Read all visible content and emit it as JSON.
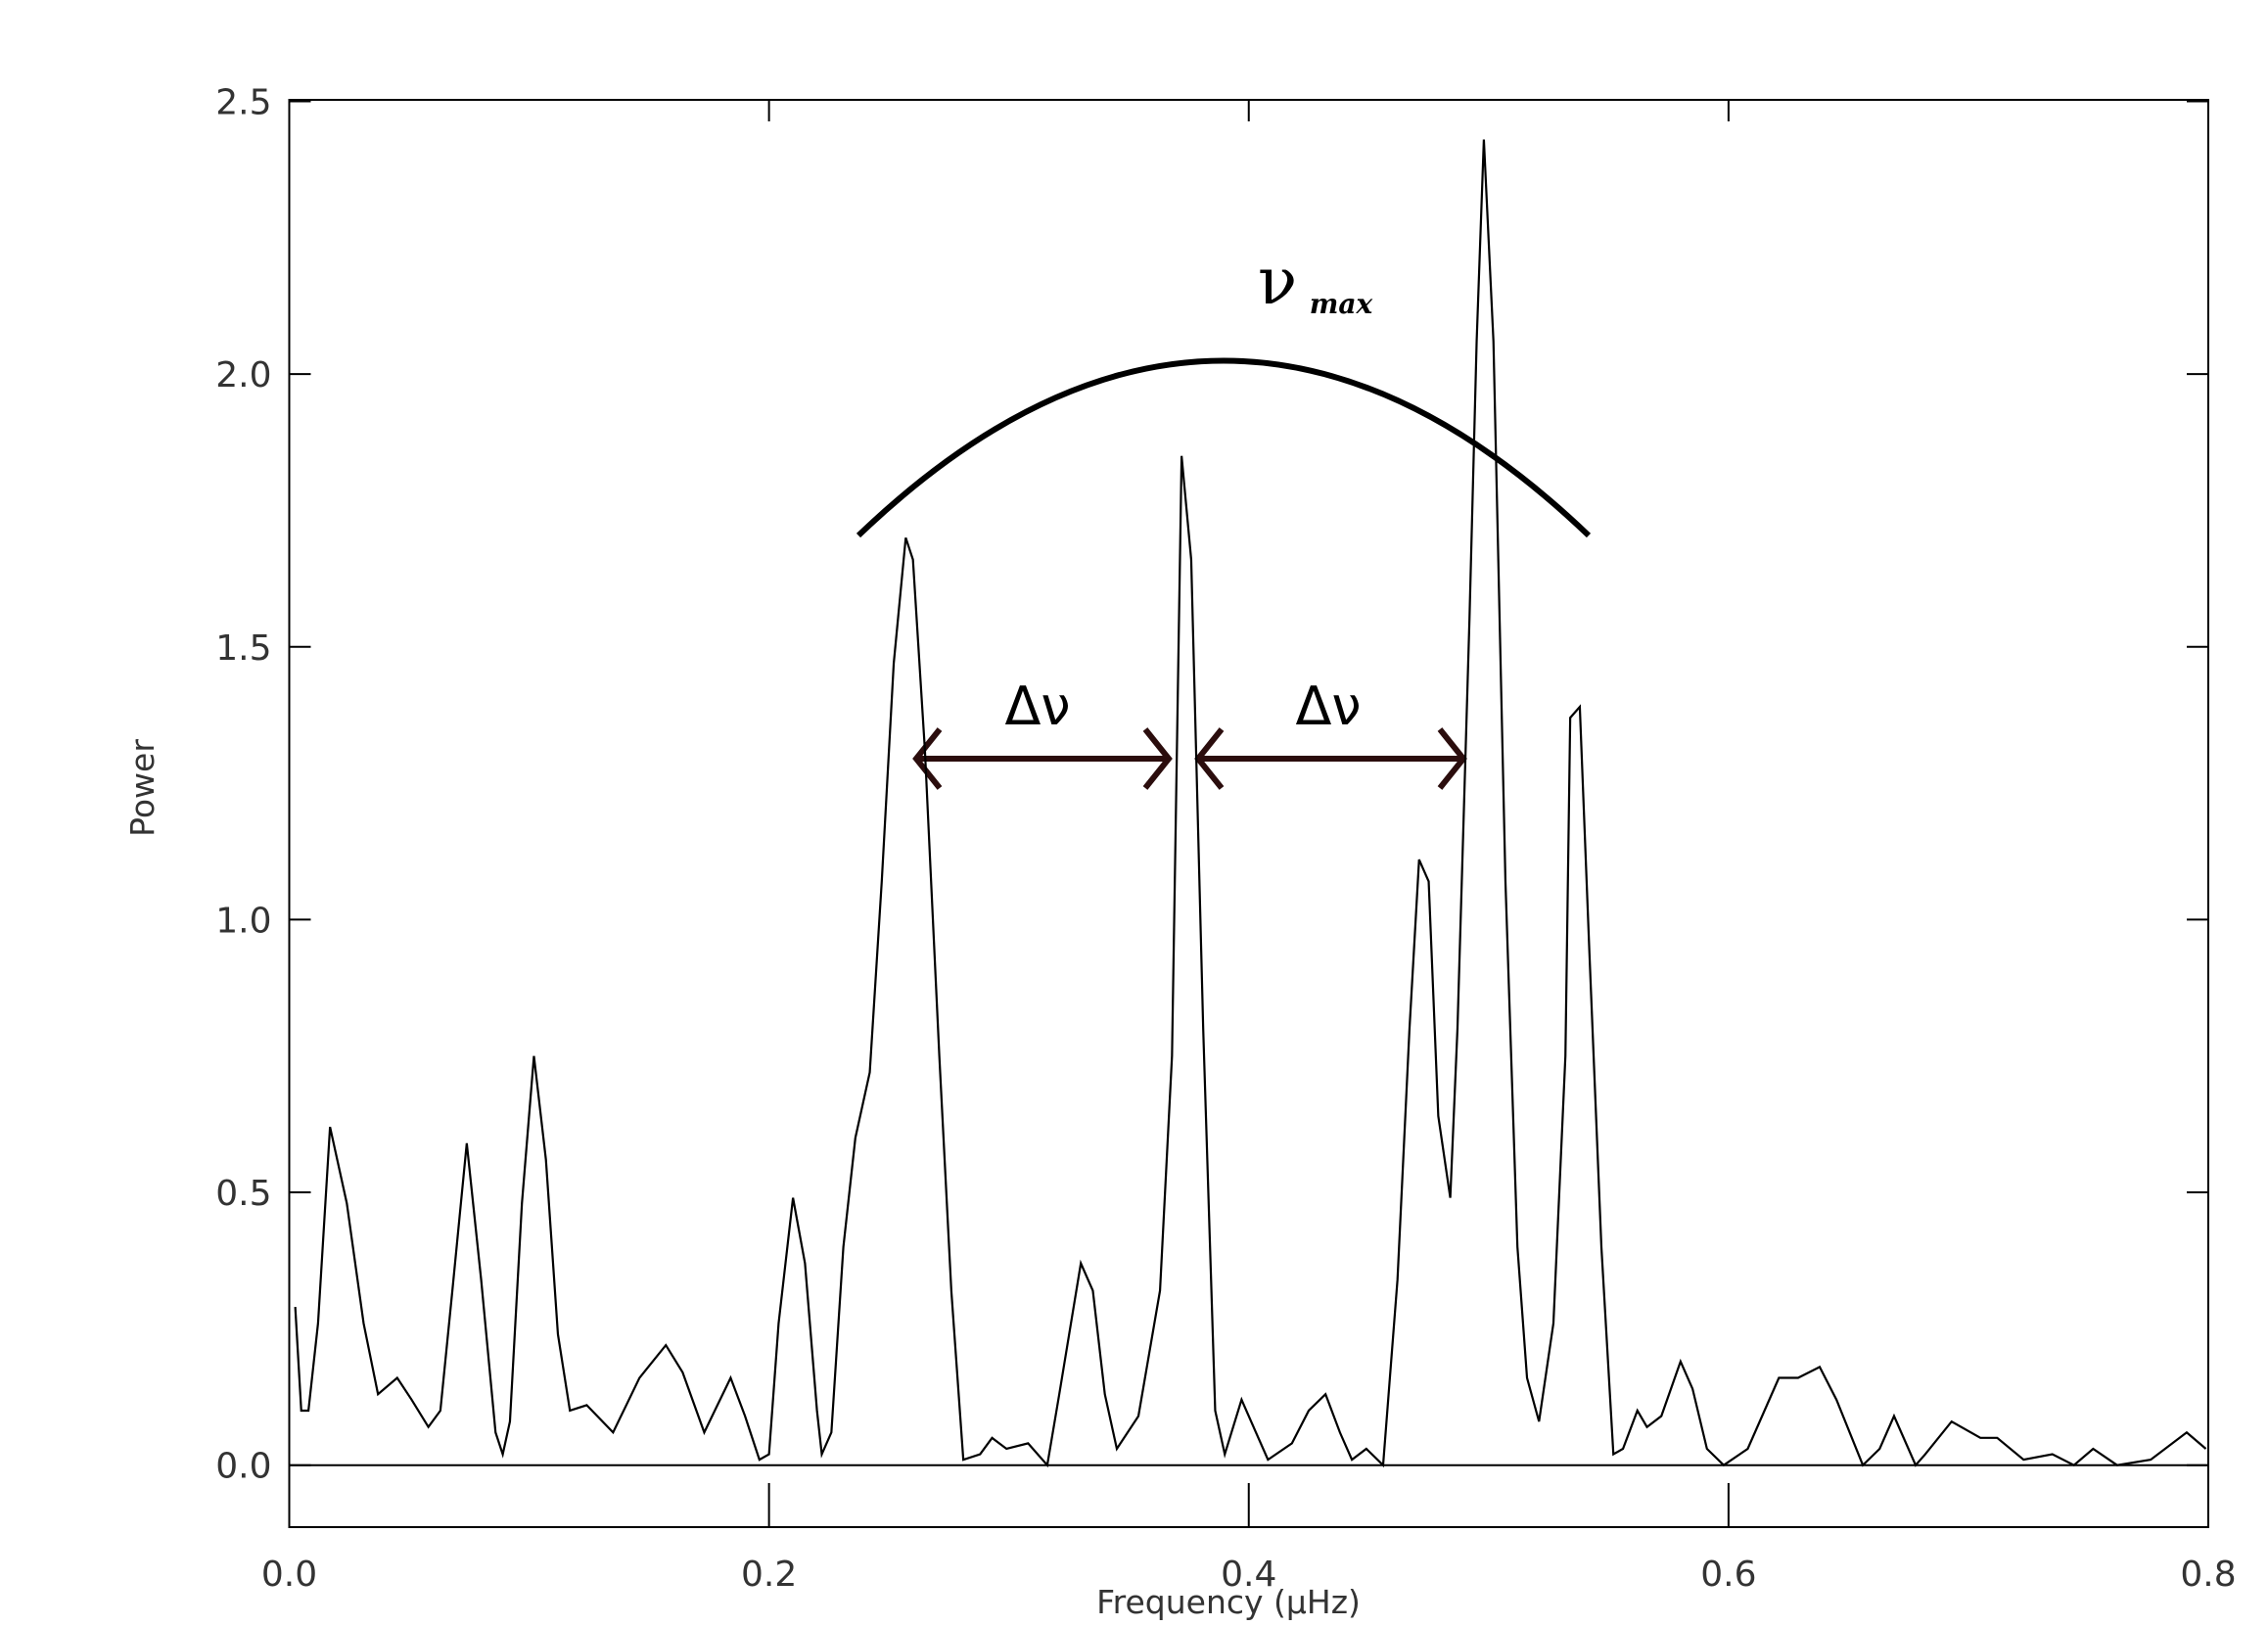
{
  "chart_data": {
    "type": "line",
    "xlabel": "Frequency (μHz)",
    "ylabel": "Power",
    "xlim": [
      0,
      0.8
    ],
    "ylim": [
      -0.11,
      2.5
    ],
    "xticks": [
      {
        "value": 0,
        "label": "0.0"
      },
      0.2,
      0.4,
      0.6,
      0.8
    ],
    "yticks": [
      {
        "value": 0,
        "label": "0.0"
      },
      0.5,
      {
        "value": 1,
        "label": "1.0"
      },
      1.5,
      {
        "value": 2,
        "label": "2.0"
      },
      2.5
    ],
    "annotations": [
      "Δν",
      "Δν",
      "ν",
      "max"
    ],
    "series": [
      {
        "color": "#000000",
        "x": [
          0.0025,
          0.005,
          0.008,
          0.012,
          0.017,
          0.024,
          0.031,
          0.037,
          0.045,
          0.051,
          0.058,
          0.063,
          0.068,
          0.074,
          0.08,
          0.086,
          0.089,
          0.092,
          0.097,
          0.102,
          0.107,
          0.112,
          0.117,
          0.124,
          0.135,
          0.146,
          0.157,
          0.164,
          0.173,
          0.184,
          0.19,
          0.196,
          0.2,
          0.204,
          0.21,
          0.215,
          0.22,
          0.222,
          0.226,
          0.231,
          0.236,
          0.242,
          0.247,
          0.252,
          0.257,
          0.26,
          0.265,
          0.271,
          0.276,
          0.281,
          0.288,
          0.293,
          0.299,
          0.308,
          0.316,
          0.321,
          0.33,
          0.335,
          0.34,
          0.345,
          0.354,
          0.363,
          0.368,
          0.372,
          0.376,
          0.381,
          0.386,
          0.39,
          0.397,
          0.403,
          0.408,
          0.418,
          0.425,
          0.432,
          0.438,
          0.443,
          0.449,
          0.456,
          0.462,
          0.467,
          0.471,
          0.475,
          0.479,
          0.484,
          0.487,
          0.492,
          0.495,
          0.498,
          0.502,
          0.507,
          0.512,
          0.516,
          0.521,
          0.527,
          0.532,
          0.534,
          0.538,
          0.542,
          0.547,
          0.552,
          0.556,
          0.562,
          0.566,
          0.572,
          0.58,
          0.585,
          0.591,
          0.598,
          0.608,
          0.621,
          0.629,
          0.638,
          0.645,
          0.656,
          0.663,
          0.669,
          0.678,
          0.682,
          0.693,
          0.705,
          0.712,
          0.723,
          0.735,
          0.744,
          0.752,
          0.762,
          0.776,
          0.791,
          0.799
        ],
        "values": [
          0.29,
          0.1,
          0.1,
          0.26,
          0.62,
          0.48,
          0.26,
          0.13,
          0.16,
          0.12,
          0.07,
          0.1,
          0.32,
          0.59,
          0.34,
          0.06,
          0.02,
          0.08,
          0.48,
          0.75,
          0.56,
          0.24,
          0.1,
          0.11,
          0.06,
          0.16,
          0.22,
          0.17,
          0.06,
          0.16,
          0.09,
          0.01,
          0.02,
          0.26,
          0.49,
          0.37,
          0.1,
          0.02,
          0.06,
          0.4,
          0.6,
          0.72,
          1.07,
          1.47,
          1.7,
          1.66,
          1.31,
          0.75,
          0.32,
          0.01,
          0.02,
          0.05,
          0.03,
          0.04,
          0.0,
          0.13,
          0.37,
          0.32,
          0.13,
          0.03,
          0.09,
          0.32,
          0.75,
          1.85,
          1.66,
          0.8,
          0.1,
          0.02,
          0.12,
          0.06,
          0.01,
          0.04,
          0.1,
          0.13,
          0.06,
          0.01,
          0.03,
          0.0,
          0.34,
          0.8,
          1.11,
          1.07,
          0.64,
          0.49,
          0.8,
          1.55,
          2.06,
          2.43,
          2.06,
          1.07,
          0.4,
          0.16,
          0.08,
          0.26,
          0.75,
          1.37,
          1.39,
          0.94,
          0.4,
          0.02,
          0.03,
          0.1,
          0.07,
          0.09,
          0.19,
          0.14,
          0.03,
          0.0,
          0.03,
          0.16,
          0.16,
          0.18,
          0.12,
          0.0,
          0.03,
          0.09,
          0.0,
          0.02,
          0.08,
          0.05,
          0.05,
          0.01,
          0.02,
          0.0,
          0.03,
          0.0,
          0.01,
          0.06,
          0.03
        ]
      }
    ]
  }
}
